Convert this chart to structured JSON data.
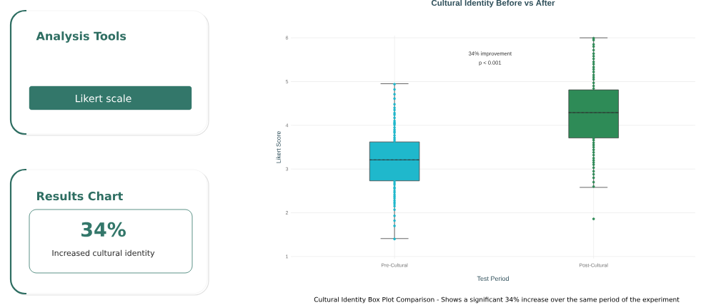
{
  "chart_data": [
    {
      "type": "other",
      "title": "Analysis Tools",
      "annotations": [
        "Likert scale"
      ]
    },
    {
      "type": "other",
      "title": "Results Chart",
      "annotations": [
        "34%",
        "Increased cultural identity"
      ]
    },
    {
      "type": "box",
      "title": "Cultural Identity Before vs After",
      "xlabel": "Test Period",
      "ylabel": "Likert Score",
      "categories": [
        "Pre-Cultural",
        "Post-Cultural"
      ],
      "colors": [
        "#1fb8cc",
        "#2e8b57"
      ],
      "boxes": [
        {
          "low": 1.41,
          "q1": 2.73,
          "median": 3.21,
          "q3": 3.62,
          "high": 4.95,
          "mean": 3.21
        },
        {
          "low": 2.58,
          "q1": 3.71,
          "median": 4.29,
          "q3": 4.81,
          "high": 6.0,
          "mean": 4.29,
          "outliers": [
            1.86
          ]
        }
      ],
      "series": [
        {
          "type": "scatter",
          "color": "#1fb8cc",
          "x": [
            "Pre-Cultural",
            "Pre-Cultural",
            "Pre-Cultural",
            "Pre-Cultural",
            "Pre-Cultural",
            "Pre-Cultural",
            "Pre-Cultural",
            "Pre-Cultural",
            "Pre-Cultural",
            "Pre-Cultural",
            "Pre-Cultural",
            "Pre-Cultural",
            "Pre-Cultural",
            "Pre-Cultural",
            "Pre-Cultural",
            "Pre-Cultural",
            "Pre-Cultural",
            "Pre-Cultural",
            "Pre-Cultural",
            "Pre-Cultural",
            "Pre-Cultural",
            "Pre-Cultural",
            "Pre-Cultural",
            "Pre-Cultural",
            "Pre-Cultural",
            "Pre-Cultural",
            "Pre-Cultural",
            "Pre-Cultural",
            "Pre-Cultural",
            "Pre-Cultural",
            "Pre-Cultural",
            "Pre-Cultural",
            "Pre-Cultural",
            "Pre-Cultural",
            "Pre-Cultural",
            "Pre-Cultural",
            "Pre-Cultural",
            "Pre-Cultural",
            "Pre-Cultural",
            "Pre-Cultural",
            "Pre-Cultural"
          ],
          "values": [
            4.94,
            4.82,
            4.71,
            4.61,
            4.48,
            4.4,
            4.35,
            4.28,
            4.24,
            4.17,
            4.1,
            4.06,
            4.04,
            4.01,
            3.95,
            3.9,
            3.86,
            3.83,
            3.77,
            3.72,
            3.68,
            3.64,
            2.72,
            2.68,
            2.64,
            2.58,
            2.55,
            2.5,
            2.46,
            2.41,
            2.37,
            2.33,
            2.28,
            2.24,
            2.2,
            2.15,
            2.07,
            1.93,
            1.82,
            1.7,
            1.4
          ]
        },
        {
          "type": "scatter",
          "color": "#2e8b57",
          "x": [
            "Post-Cultural",
            "Post-Cultural",
            "Post-Cultural",
            "Post-Cultural",
            "Post-Cultural",
            "Post-Cultural",
            "Post-Cultural",
            "Post-Cultural",
            "Post-Cultural",
            "Post-Cultural",
            "Post-Cultural",
            "Post-Cultural",
            "Post-Cultural",
            "Post-Cultural",
            "Post-Cultural",
            "Post-Cultural",
            "Post-Cultural",
            "Post-Cultural",
            "Post-Cultural",
            "Post-Cultural",
            "Post-Cultural",
            "Post-Cultural",
            "Post-Cultural",
            "Post-Cultural",
            "Post-Cultural",
            "Post-Cultural",
            "Post-Cultural",
            "Post-Cultural",
            "Post-Cultural",
            "Post-Cultural",
            "Post-Cultural",
            "Post-Cultural",
            "Post-Cultural",
            "Post-Cultural",
            "Post-Cultural",
            "Post-Cultural",
            "Post-Cultural"
          ],
          "values": [
            5.99,
            5.95,
            5.85,
            5.8,
            5.72,
            5.64,
            5.58,
            5.52,
            5.45,
            5.4,
            5.33,
            5.28,
            5.22,
            5.15,
            5.1,
            5.05,
            4.97,
            4.9,
            4.84,
            3.7,
            3.66,
            3.6,
            3.55,
            3.5,
            3.44,
            3.38,
            3.32,
            3.25,
            3.2,
            3.15,
            3.1,
            3.03,
            2.95,
            2.88,
            2.8,
            2.7,
            2.6
          ]
        }
      ],
      "marker": "circle",
      "ylim": [
        0.95,
        6.05
      ],
      "yticks": [
        1,
        2,
        3,
        4,
        5,
        6
      ],
      "grid": true,
      "annotations": [
        "34% improvement",
        "p < 0.001",
        "Cultural Identity Box Plot Comparison - Shows a significant 34% increase over the same period of the experiment"
      ]
    }
  ]
}
